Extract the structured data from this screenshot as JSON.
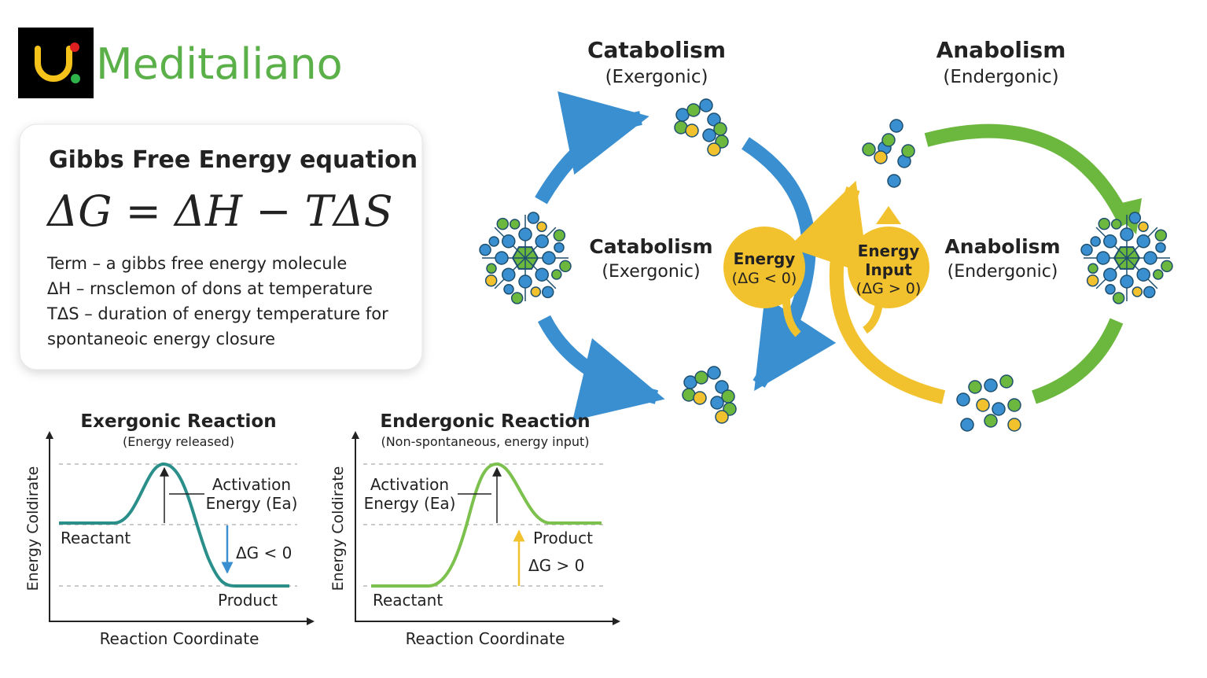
{
  "header": {
    "logo": "Meditaliano"
  },
  "equation_card": {
    "title": "Gibbs Free Energy equation",
    "equation": "ΔG = ΔH − TΔS",
    "terms": [
      "Term – a gibbs free energy molecule",
      "ΔH – rnsclemon of dons at temperature",
      "TΔS – duration of energy temperature for",
      "spontaneoic energy closure"
    ]
  },
  "cycle": {
    "catabolism_top": {
      "title": "Catabolism",
      "subtitle": "(Exergonic)"
    },
    "anabolism_top": {
      "title": "Anabolism",
      "subtitle": "(Endergonic)"
    },
    "catabolism_side": {
      "title": "Catabolism",
      "subtitle": "(Exergonic)"
    },
    "anabolism_side": {
      "title": "Anabolism",
      "subtitle": "(Endergonic)"
    },
    "energy_release": [
      "Energy",
      "(ΔG < 0)"
    ],
    "energy_input": [
      "Energy",
      "Input",
      "(ΔG > 0)"
    ]
  },
  "diagrams": [
    {
      "title": "Exergonic Reaction",
      "subtitle": "(Energy released)",
      "y_label": "Energy Coldirate",
      "x_label": "Reaction Coordinate",
      "activation": [
        "Activation",
        "Energy (Ea)"
      ],
      "reactant": "Reactant",
      "product": "Product",
      "delta_g": "ΔG < 0"
    },
    {
      "title": "Endergonic Reaction",
      "subtitle": "(Non-spontaneous, energy input)",
      "y_label": "Energy Coldirate",
      "x_label": "Reaction Coordinate",
      "activation": [
        "Activation",
        "Energy (Ea)"
      ],
      "reactant": "Reactant",
      "product": "Product",
      "delta_g": "ΔG > 0"
    }
  ]
}
